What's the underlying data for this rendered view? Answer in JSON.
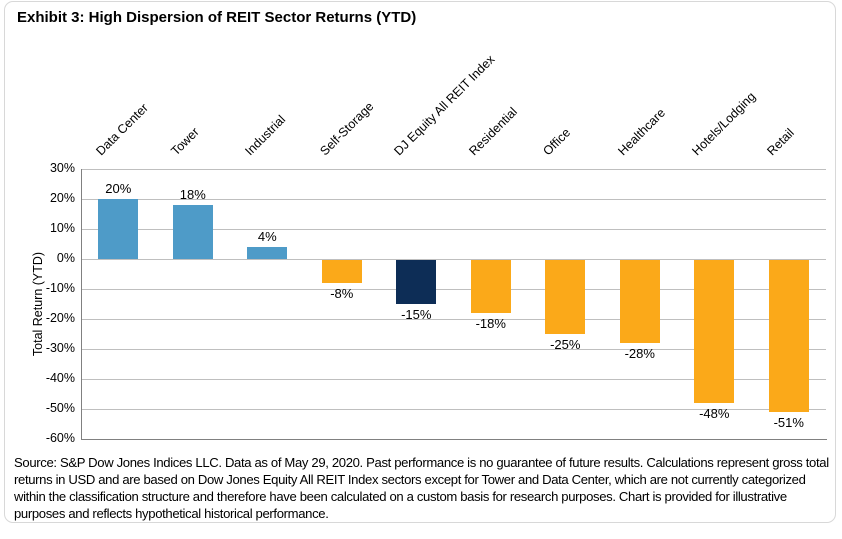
{
  "title": "Exhibit 3: High Dispersion of REIT Sector Returns (YTD)",
  "source_note": "Source: S&P Dow Jones Indices LLC. Data as of May 29, 2020. Past performance is no guarantee of future results. Calculations represent gross total returns in USD and are based on Dow Jones Equity All REIT Index sectors except for Tower and Data Center, which are not currently categorized within the classification structure and therefore have been calculated on a custom basis for research purposes. Chart is provided for illustrative purposes and reflects hypothetical historical performance.",
  "chart_data": {
    "type": "bar",
    "title": "Exhibit 3: High Dispersion of REIT Sector Returns (YTD)",
    "categories": [
      "Data Center",
      "Tower",
      "Industrial",
      "Self-Storage",
      "DJ Equity All REIT Index",
      "Residential",
      "Office",
      "Healthcare",
      "Hotels/Lodging",
      "Retail"
    ],
    "values": [
      20,
      18,
      4,
      -8,
      -15,
      -18,
      -25,
      -28,
      -48,
      -51
    ],
    "value_labels": [
      "20%",
      "18%",
      "4%",
      "-8%",
      "-15%",
      "-18%",
      "-25%",
      "-28%",
      "-48%",
      "-51%"
    ],
    "bar_color_keys": [
      "positive",
      "positive",
      "positive",
      "negative",
      "index",
      "negative",
      "negative",
      "negative",
      "negative",
      "negative"
    ],
    "xlabel": "",
    "ylabel": "Total Return  (YTD)",
    "ylim": [
      -60,
      30
    ],
    "ytick_step": 10,
    "ytick_suffix": "%",
    "grid": true,
    "legend": "none",
    "colors": {
      "positive": "#4E9BC8",
      "negative": "#FBA919",
      "index": "#0D2D56",
      "gridline": "#BFBFBF",
      "axis": "#808080"
    }
  }
}
